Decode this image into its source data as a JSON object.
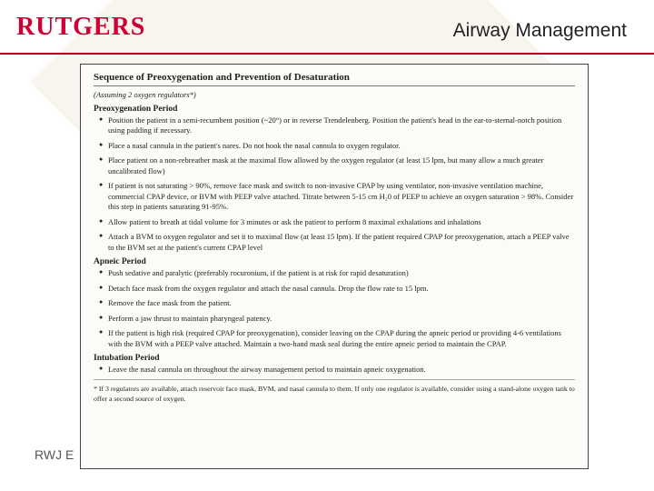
{
  "brand": {
    "name": "RUTGERS",
    "color": "#cc0033"
  },
  "slide_title": "Airway Management",
  "footer_text": "RWJ E",
  "colors": {
    "accent_line": "#b8001c",
    "page_bg": "#ffffff",
    "doc_bg": "#fcfbf7",
    "doc_border": "#444444",
    "text": "#222222",
    "watermark": "#f3ede3"
  },
  "document": {
    "title": "Sequence of Preoxygenation and Prevention of Desaturation",
    "assumption": "(Assuming 2 oxygen regulators*)",
    "sections": {
      "preoxy": {
        "heading": "Preoxygenation Period",
        "b1": "Position the patient in a semi-recumbent position (~20°) or in reverse Trendelenberg. Position the patient's head in the ear-to-sternal-notch position using padding if necessary.",
        "b2": "Place a nasal cannula in the patient's nares. Do not hook the nasal cannula to oxygen regulator.",
        "b3": "Place patient on a non-rebreather mask at the maximal flow allowed by the oxygen regulator (at least 15 lpm, but many allow a much greater uncalibrated flow)",
        "b4": "If patient is not saturating > 90%, remove face mask and switch to non-invasive CPAP by using ventilator, non-invasive ventilation machine, commercial CPAP device, or BVM with PEEP valve attached. Titrate between 5-15 cm H₂0 of PEEP to achieve an oxygen saturation > 98%. Consider this step in patients saturating 91-95%.",
        "b5": "Allow patient to breath at tidal volume for 3 minutes or ask the patient to perform 8 maximal exhalations and inhalations",
        "b6": "Attach a BVM to oxygen regulator and set it to maximal flow (at least 15 lpm). If the patient required CPAP for preoxygenation, attach a PEEP valve to the BVM set at the patient's current CPAP level"
      },
      "apneic": {
        "heading": "Apneic Period",
        "b1": "Push sedative and paralytic (preferably rocuronium, if the patient is at risk for rapid desaturation)",
        "b2": "Detach face mask from the oxygen regulator and attach the nasal cannula. Drop the flow rate to 15 lpm.",
        "b3": "Remove the face mask from the patient.",
        "b4": "Perform a jaw thrust to maintain pharyngeal patency.",
        "b5": "If the patient is high risk (required CPAP for preoxygenation), consider leaving on the CPAP during the apneic period or providing 4-6 ventilations with the BVM with a PEEP valve attached. Maintain a two-hand mask seal during the entire apneic period to maintain the CPAP."
      },
      "intubation": {
        "heading": "Intubation Period",
        "b1": "Leave the nasal cannula on throughout the airway management period to maintain apneic oxygenation."
      }
    },
    "footnote": "* If 3 regulators are available, attach reservoir face mask, BVM, and nasal cannula to them. If only one regulator is available, consider using a stand-alone oxygen tank to offer a second source of oxygen."
  }
}
